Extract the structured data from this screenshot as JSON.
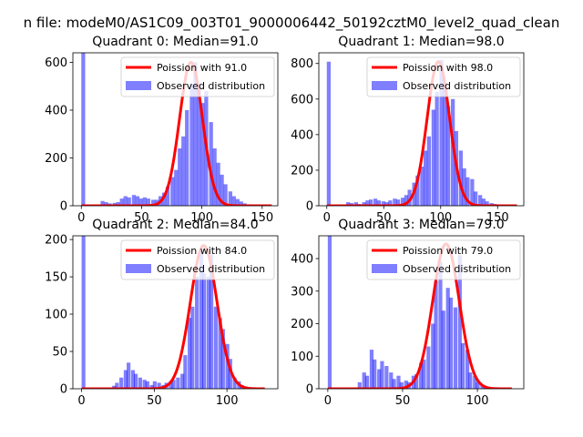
{
  "figure": {
    "suptitle": "n file: modeM0/AS1C09_003T01_9000006442_50192cztM0_level2_quad_clean"
  },
  "chart_data": [
    {
      "type": "bar",
      "title": "Quadrant 0: Median=91.0",
      "xlabel": "",
      "ylabel": "",
      "xlim": [
        -7,
        163
      ],
      "ylim": [
        0,
        640
      ],
      "xticks": [
        0,
        50,
        100,
        150
      ],
      "yticks": [
        0,
        200,
        400,
        600
      ],
      "median": 91.0,
      "bin_width": 3.2,
      "bins": [
        [
          0,
          640
        ],
        [
          16,
          20
        ],
        [
          19,
          15
        ],
        [
          22,
          10
        ],
        [
          26,
          12
        ],
        [
          29,
          15
        ],
        [
          32,
          30
        ],
        [
          35,
          40
        ],
        [
          38,
          35
        ],
        [
          42,
          45
        ],
        [
          45,
          40
        ],
        [
          48,
          30
        ],
        [
          51,
          35
        ],
        [
          54,
          30
        ],
        [
          58,
          25
        ],
        [
          61,
          25
        ],
        [
          64,
          40
        ],
        [
          67,
          55
        ],
        [
          70,
          80
        ],
        [
          74,
          120
        ],
        [
          77,
          150
        ],
        [
          80,
          240
        ],
        [
          83,
          290
        ],
        [
          86,
          400
        ],
        [
          90,
          510
        ],
        [
          93,
          600
        ],
        [
          96,
          510
        ],
        [
          99,
          430
        ],
        [
          102,
          480
        ],
        [
          106,
          350
        ],
        [
          109,
          240
        ],
        [
          112,
          180
        ],
        [
          115,
          130
        ],
        [
          118,
          90
        ],
        [
          122,
          60
        ],
        [
          125,
          40
        ],
        [
          128,
          28
        ],
        [
          131,
          18
        ],
        [
          134,
          10
        ],
        [
          138,
          6
        ],
        [
          141,
          3
        ]
      ],
      "fit": {
        "label": "Poission with 91.0",
        "mean": 91.0,
        "peak": 600,
        "xmax": 158
      },
      "legend": [
        "Poission with 91.0",
        "Observed distribution"
      ],
      "legend_loc": "upper right"
    },
    {
      "type": "bar",
      "title": "Quadrant 1: Median=98.0",
      "xlabel": "",
      "ylabel": "",
      "xlim": [
        -7,
        173
      ],
      "ylim": [
        0,
        860
      ],
      "xticks": [
        0,
        50,
        100,
        150
      ],
      "yticks": [
        0,
        200,
        400,
        600,
        800
      ],
      "median": 98.0,
      "bin_width": 3.4,
      "bins": [
        [
          0,
          810
        ],
        [
          17,
          20
        ],
        [
          20,
          15
        ],
        [
          24,
          20
        ],
        [
          27,
          10
        ],
        [
          31,
          20
        ],
        [
          34,
          30
        ],
        [
          37,
          35
        ],
        [
          41,
          40
        ],
        [
          44,
          30
        ],
        [
          48,
          25
        ],
        [
          51,
          20
        ],
        [
          54,
          30
        ],
        [
          58,
          40
        ],
        [
          61,
          35
        ],
        [
          65,
          45
        ],
        [
          68,
          60
        ],
        [
          71,
          90
        ],
        [
          75,
          130
        ],
        [
          78,
          170
        ],
        [
          82,
          220
        ],
        [
          85,
          310
        ],
        [
          88,
          390
        ],
        [
          92,
          540
        ],
        [
          95,
          640
        ],
        [
          99,
          820
        ],
        [
          102,
          690
        ],
        [
          105,
          560
        ],
        [
          109,
          600
        ],
        [
          112,
          420
        ],
        [
          116,
          310
        ],
        [
          119,
          210
        ],
        [
          122,
          160
        ],
        [
          126,
          150
        ],
        [
          129,
          80
        ],
        [
          133,
          60
        ],
        [
          136,
          40
        ],
        [
          139,
          25
        ],
        [
          143,
          15
        ],
        [
          146,
          10
        ],
        [
          150,
          6
        ]
      ],
      "fit": {
        "label": "Poission with 98.0",
        "mean": 98.0,
        "peak": 810,
        "xmax": 167
      },
      "legend": [
        "Poission with 98.0",
        "Observed distribution"
      ],
      "legend_loc": "upper right"
    },
    {
      "type": "bar",
      "title": "Quadrant 2: Median=84.0",
      "xlabel": "",
      "ylabel": "",
      "xlim": [
        -6,
        135
      ],
      "ylim": [
        0,
        205
      ],
      "xticks": [
        0,
        50,
        100
      ],
      "yticks": [
        0,
        50,
        100,
        150,
        200
      ],
      "median": 84.0,
      "bin_width": 2.6,
      "bins": [
        [
          0,
          205
        ],
        [
          21,
          4
        ],
        [
          23,
          8
        ],
        [
          26,
          15
        ],
        [
          29,
          25
        ],
        [
          31,
          35
        ],
        [
          34,
          25
        ],
        [
          36,
          20
        ],
        [
          39,
          15
        ],
        [
          42,
          12
        ],
        [
          44,
          10
        ],
        [
          47,
          5
        ],
        [
          49,
          10
        ],
        [
          52,
          8
        ],
        [
          55,
          5
        ],
        [
          57,
          8
        ],
        [
          60,
          10
        ],
        [
          62,
          12
        ],
        [
          65,
          15
        ],
        [
          68,
          20
        ],
        [
          70,
          45
        ],
        [
          73,
          95
        ],
        [
          75,
          110
        ],
        [
          78,
          150
        ],
        [
          81,
          185
        ],
        [
          83,
          155
        ],
        [
          86,
          150
        ],
        [
          88,
          180
        ],
        [
          91,
          110
        ],
        [
          94,
          95
        ],
        [
          96,
          80
        ],
        [
          99,
          60
        ],
        [
          101,
          40
        ],
        [
          104,
          15
        ],
        [
          107,
          10
        ],
        [
          109,
          5
        ],
        [
          112,
          3
        ]
      ],
      "fit": {
        "label": "Poission with 84.0",
        "mean": 84.0,
        "peak": 192,
        "xmax": 126
      },
      "legend": [
        "Poission with 84.0",
        "Observed distribution"
      ],
      "legend_loc": "upper right"
    },
    {
      "type": "bar",
      "title": "Quadrant 3: Median=79.0",
      "xlabel": "",
      "ylabel": "",
      "xlim": [
        -6,
        131
      ],
      "ylim": [
        0,
        470
      ],
      "xticks": [
        0,
        50,
        100
      ],
      "yticks": [
        0,
        100,
        200,
        300,
        400
      ],
      "median": 79.0,
      "bin_width": 2.55,
      "bins": [
        [
          0,
          470
        ],
        [
          20,
          20
        ],
        [
          23,
          50
        ],
        [
          25,
          40
        ],
        [
          28,
          120
        ],
        [
          30,
          90
        ],
        [
          33,
          60
        ],
        [
          35,
          85
        ],
        [
          38,
          70
        ],
        [
          41,
          50
        ],
        [
          43,
          30
        ],
        [
          46,
          40
        ],
        [
          48,
          20
        ],
        [
          51,
          25
        ],
        [
          53,
          20
        ],
        [
          56,
          40
        ],
        [
          58,
          45
        ],
        [
          61,
          80
        ],
        [
          63,
          90
        ],
        [
          66,
          130
        ],
        [
          69,
          200
        ],
        [
          71,
          330
        ],
        [
          74,
          390
        ],
        [
          76,
          240
        ],
        [
          79,
          310
        ],
        [
          81,
          280
        ],
        [
          84,
          250
        ],
        [
          87,
          410
        ],
        [
          89,
          140
        ],
        [
          92,
          120
        ],
        [
          94,
          50
        ],
        [
          97,
          40
        ],
        [
          99,
          20
        ],
        [
          102,
          10
        ],
        [
          104,
          8
        ]
      ],
      "fit": {
        "label": "Poission with 79.0",
        "mean": 79.0,
        "peak": 445,
        "xmax": 123
      },
      "legend": [
        "Poission with 79.0",
        "Observed distribution"
      ],
      "legend_loc": "upper right"
    }
  ]
}
